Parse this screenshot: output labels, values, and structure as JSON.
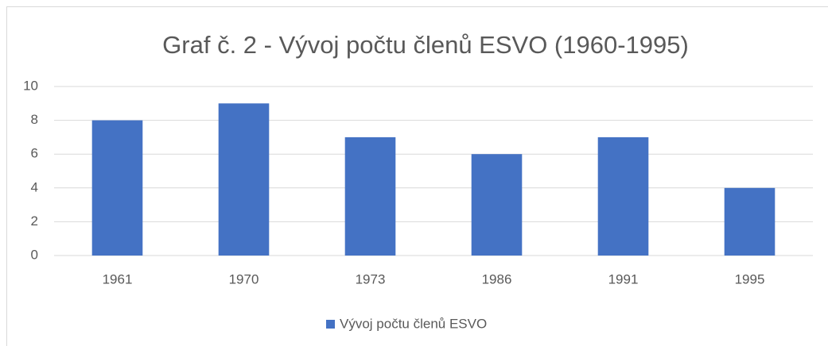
{
  "chart_data": {
    "type": "bar",
    "title": "Graf č. 2 - Vývoj počtu členů ESVO (1960-1995)",
    "categories": [
      "1961",
      "1970",
      "1973",
      "1986",
      "1991",
      "1995"
    ],
    "series": [
      {
        "name": "Vývoj počtu členů ESVO",
        "color": "#4472c4",
        "values": [
          8,
          9,
          7,
          6,
          7,
          4
        ]
      }
    ],
    "ylim": [
      0,
      10
    ],
    "yticks": [
      0,
      2,
      4,
      6,
      8,
      10
    ],
    "grid": true,
    "legend": "bottom"
  }
}
